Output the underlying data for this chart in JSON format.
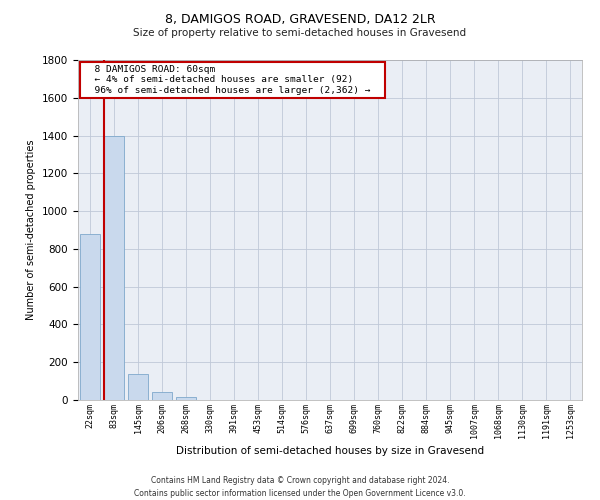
{
  "title": "8, DAMIGOS ROAD, GRAVESEND, DA12 2LR",
  "subtitle": "Size of property relative to semi-detached houses in Gravesend",
  "xlabel": "Distribution of semi-detached houses by size in Gravesend",
  "ylabel": "Number of semi-detached properties",
  "categories": [
    "22sqm",
    "83sqm",
    "145sqm",
    "206sqm",
    "268sqm",
    "330sqm",
    "391sqm",
    "453sqm",
    "514sqm",
    "576sqm",
    "637sqm",
    "699sqm",
    "760sqm",
    "822sqm",
    "884sqm",
    "945sqm",
    "1007sqm",
    "1068sqm",
    "1130sqm",
    "1191sqm",
    "1253sqm"
  ],
  "values": [
    880,
    1400,
    140,
    40,
    15,
    0,
    0,
    0,
    0,
    0,
    0,
    0,
    0,
    0,
    0,
    0,
    0,
    0,
    0,
    0,
    0
  ],
  "bar_color": "#c9d9ed",
  "bar_edge_color": "#7fa8cc",
  "highlight_color": "#c00000",
  "ylim": [
    0,
    1800
  ],
  "yticks": [
    0,
    200,
    400,
    600,
    800,
    1000,
    1200,
    1400,
    1600,
    1800
  ],
  "annotation_title": "8 DAMIGOS ROAD: 60sqm",
  "annotation_line1": "← 4% of semi-detached houses are smaller (92)",
  "annotation_line2": "96% of semi-detached houses are larger (2,362) →",
  "annotation_box_color": "#ffffff",
  "annotation_border_color": "#c00000",
  "footer_line1": "Contains HM Land Registry data © Crown copyright and database right 2024.",
  "footer_line2": "Contains public sector information licensed under the Open Government Licence v3.0.",
  "grid_color": "#c0c8d8",
  "background_color": "#ffffff",
  "plot_bg_color": "#eaeef5"
}
